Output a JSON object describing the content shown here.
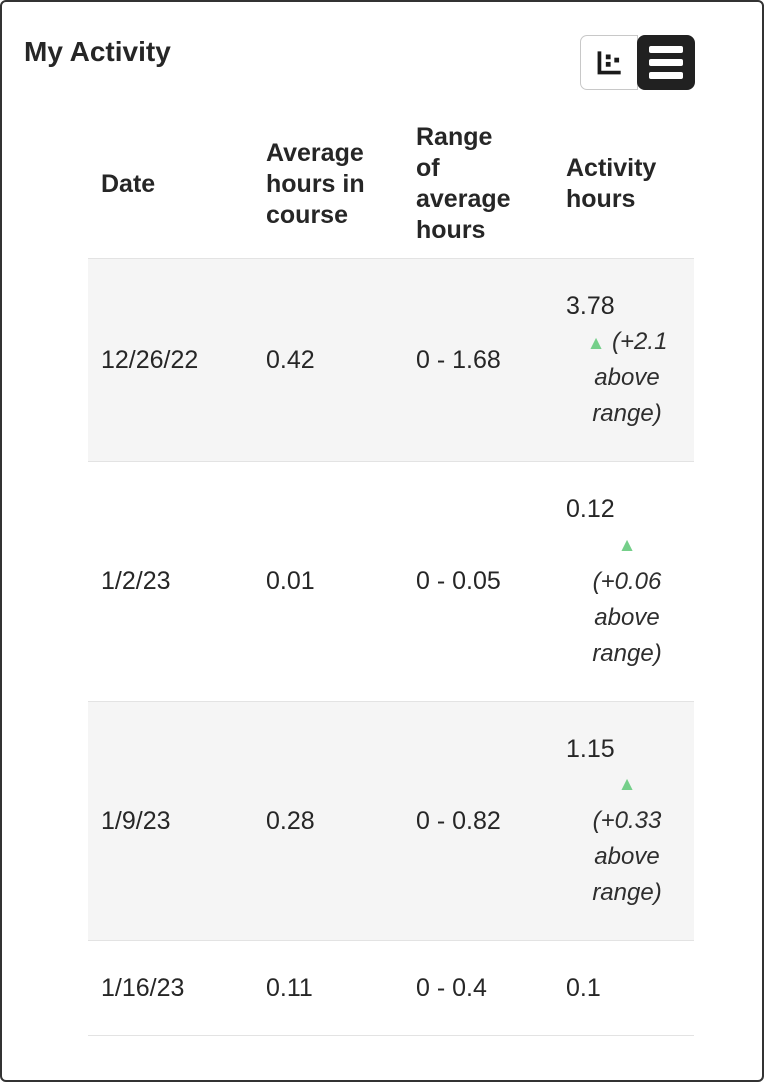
{
  "panel": {
    "title": "My Activity"
  },
  "toolbar": {
    "chart_view_label": "Chart view",
    "table_view_label": "Table view",
    "active_view": "table"
  },
  "table": {
    "columns": [
      "Date",
      "Average\nhours in\ncourse",
      "Range\nof\naverage\nhours",
      "Activity\nhours"
    ],
    "arrow_glyph": "▲",
    "rows": [
      {
        "date": "12/26/22",
        "avg": "0.42",
        "range": "0 - 1.68",
        "activity": "3.78",
        "delta": "(+2.1\nabove\nrange)",
        "arrow": "inline"
      },
      {
        "date": "1/2/23",
        "avg": "0.01",
        "range": "0 - 0.05",
        "activity": "0.12",
        "delta": "(+0.06\nabove\nrange)",
        "arrow": "block"
      },
      {
        "date": "1/9/23",
        "avg": "0.28",
        "range": "0 - 0.82",
        "activity": "1.15",
        "delta": "(+0.33\nabove\nrange)",
        "arrow": "block"
      },
      {
        "date": "1/16/23",
        "avg": "0.11",
        "range": "0 - 0.4",
        "activity": "0.1",
        "delta": null,
        "arrow": null
      }
    ]
  },
  "colors": {
    "accent_green": "#75cf8a",
    "row_stripe": "#f5f5f5",
    "divider": "#e3e3e3",
    "text": "#262626",
    "button_dark": "#212121",
    "panel_border": "#333333"
  }
}
